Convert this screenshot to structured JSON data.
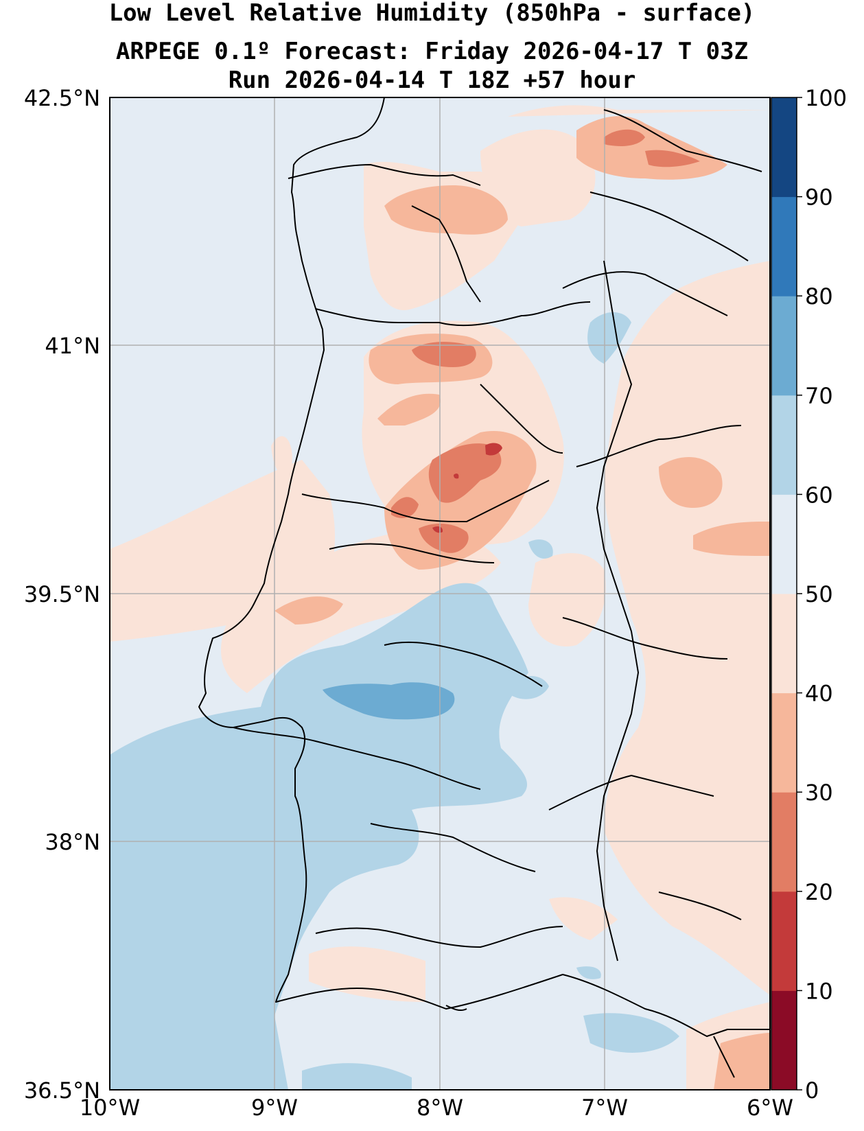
{
  "title": {
    "line1": "Low Level Relative Humidity (850hPa - surface)",
    "line2": "ARPEGE 0.1º Forecast: Friday 2026-04-17 T 03Z",
    "line3": "Run 2026-04-14 T 18Z +57 hour"
  },
  "map": {
    "lat_labels": [
      "42.5°N",
      "41°N",
      "39.5°N",
      "38°N",
      "36.5°N"
    ],
    "lon_labels": [
      "10°W",
      "9°W",
      "8°W",
      "7°W",
      "6°W"
    ],
    "lat_range": [
      36.5,
      42.5
    ],
    "lon_range": [
      -10,
      -6
    ]
  },
  "colorbar": {
    "labels": [
      "100",
      "90",
      "80",
      "70",
      "60",
      "50",
      "40",
      "30",
      "20",
      "10",
      "0"
    ],
    "levels": [
      0,
      10,
      20,
      30,
      40,
      50,
      60,
      70,
      80,
      90,
      100
    ],
    "colors": [
      "#8b0b26",
      "#c33a3a",
      "#e27d64",
      "#f6b79b",
      "#fae3d8",
      "#e4ecf4",
      "#b2d4e7",
      "#6cabd2",
      "#3079ba",
      "#144682"
    ]
  }
}
